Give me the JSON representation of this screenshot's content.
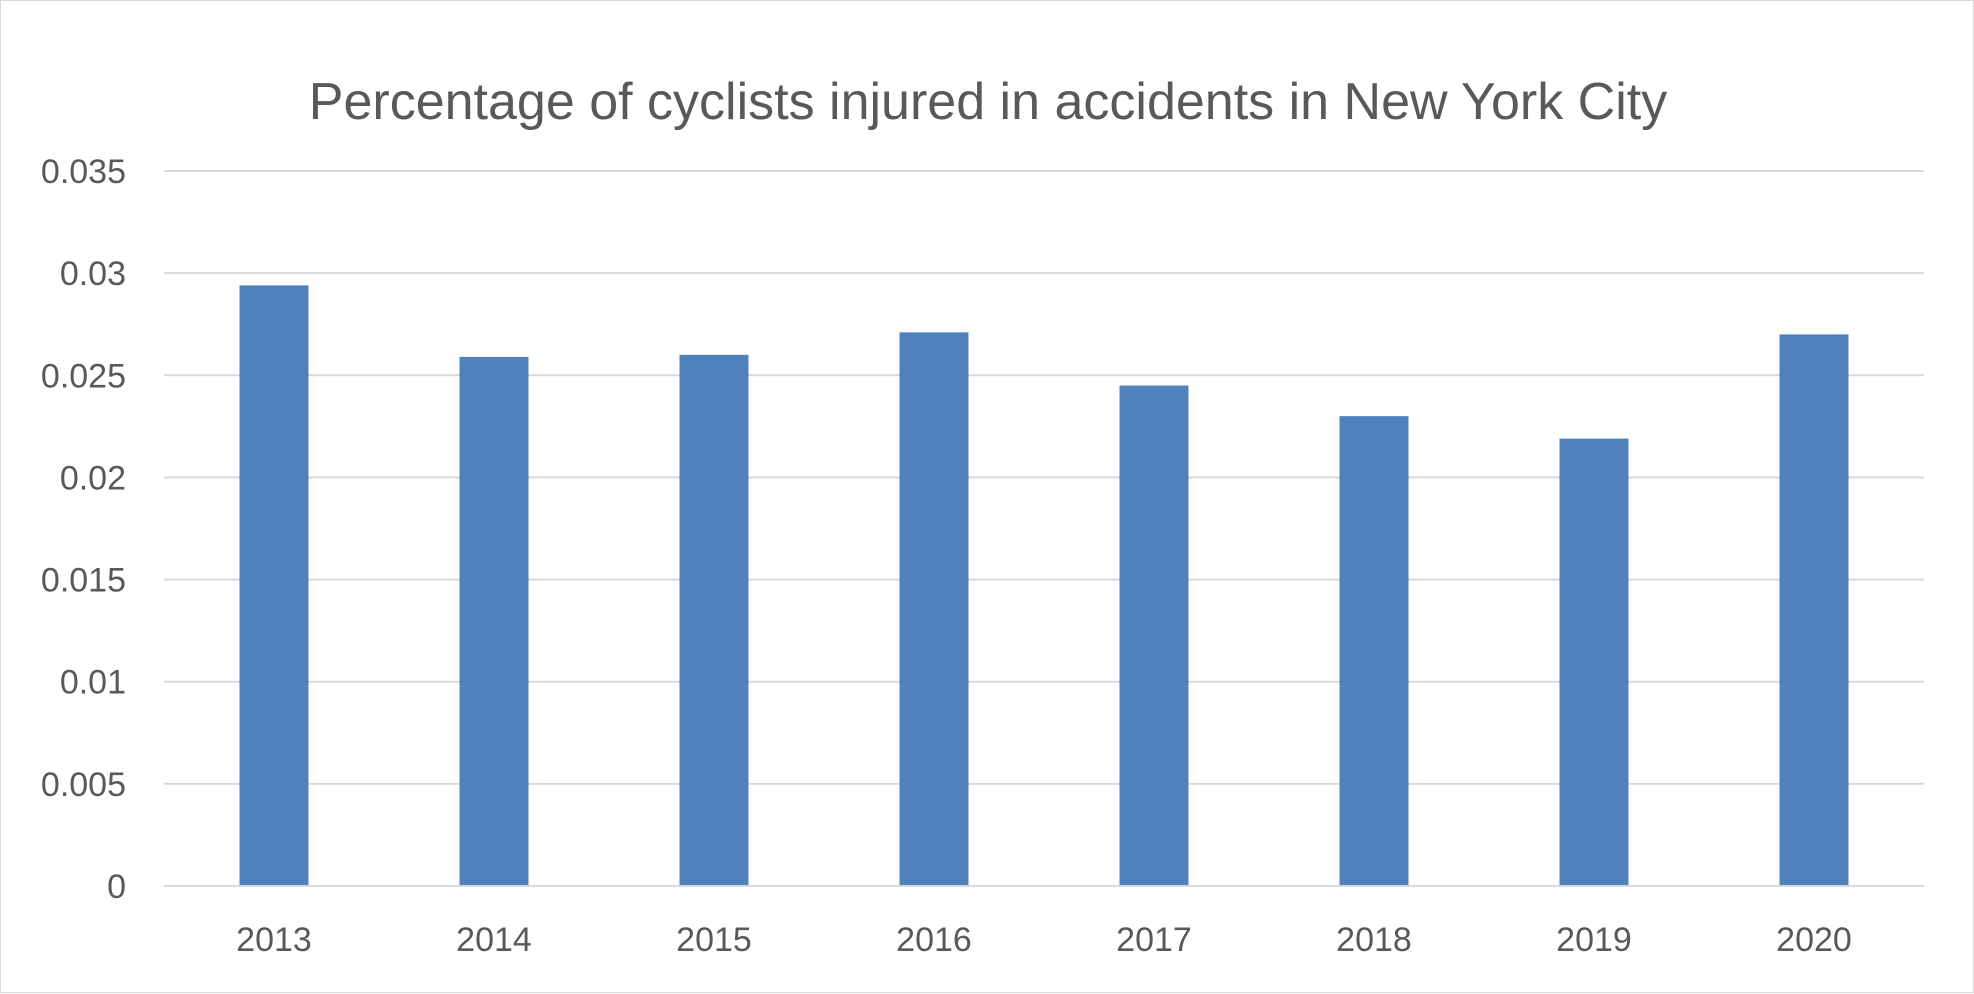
{
  "chart_data": {
    "type": "bar",
    "title": "Percentage of cyclists injured in accidents in New York City",
    "xlabel": "",
    "ylabel": "",
    "categories": [
      "2013",
      "2014",
      "2015",
      "2016",
      "2017",
      "2018",
      "2019",
      "2020"
    ],
    "values": [
      0.0294,
      0.0259,
      0.026,
      0.0271,
      0.0245,
      0.023,
      0.0219,
      0.027
    ],
    "ylim": [
      0,
      0.035
    ],
    "yticks": [
      "0",
      "0.005",
      "0.01",
      "0.015",
      "0.02",
      "0.025",
      "0.03",
      "0.035"
    ],
    "grid": true,
    "legend": "none",
    "bar_color": "#4f81bd"
  }
}
